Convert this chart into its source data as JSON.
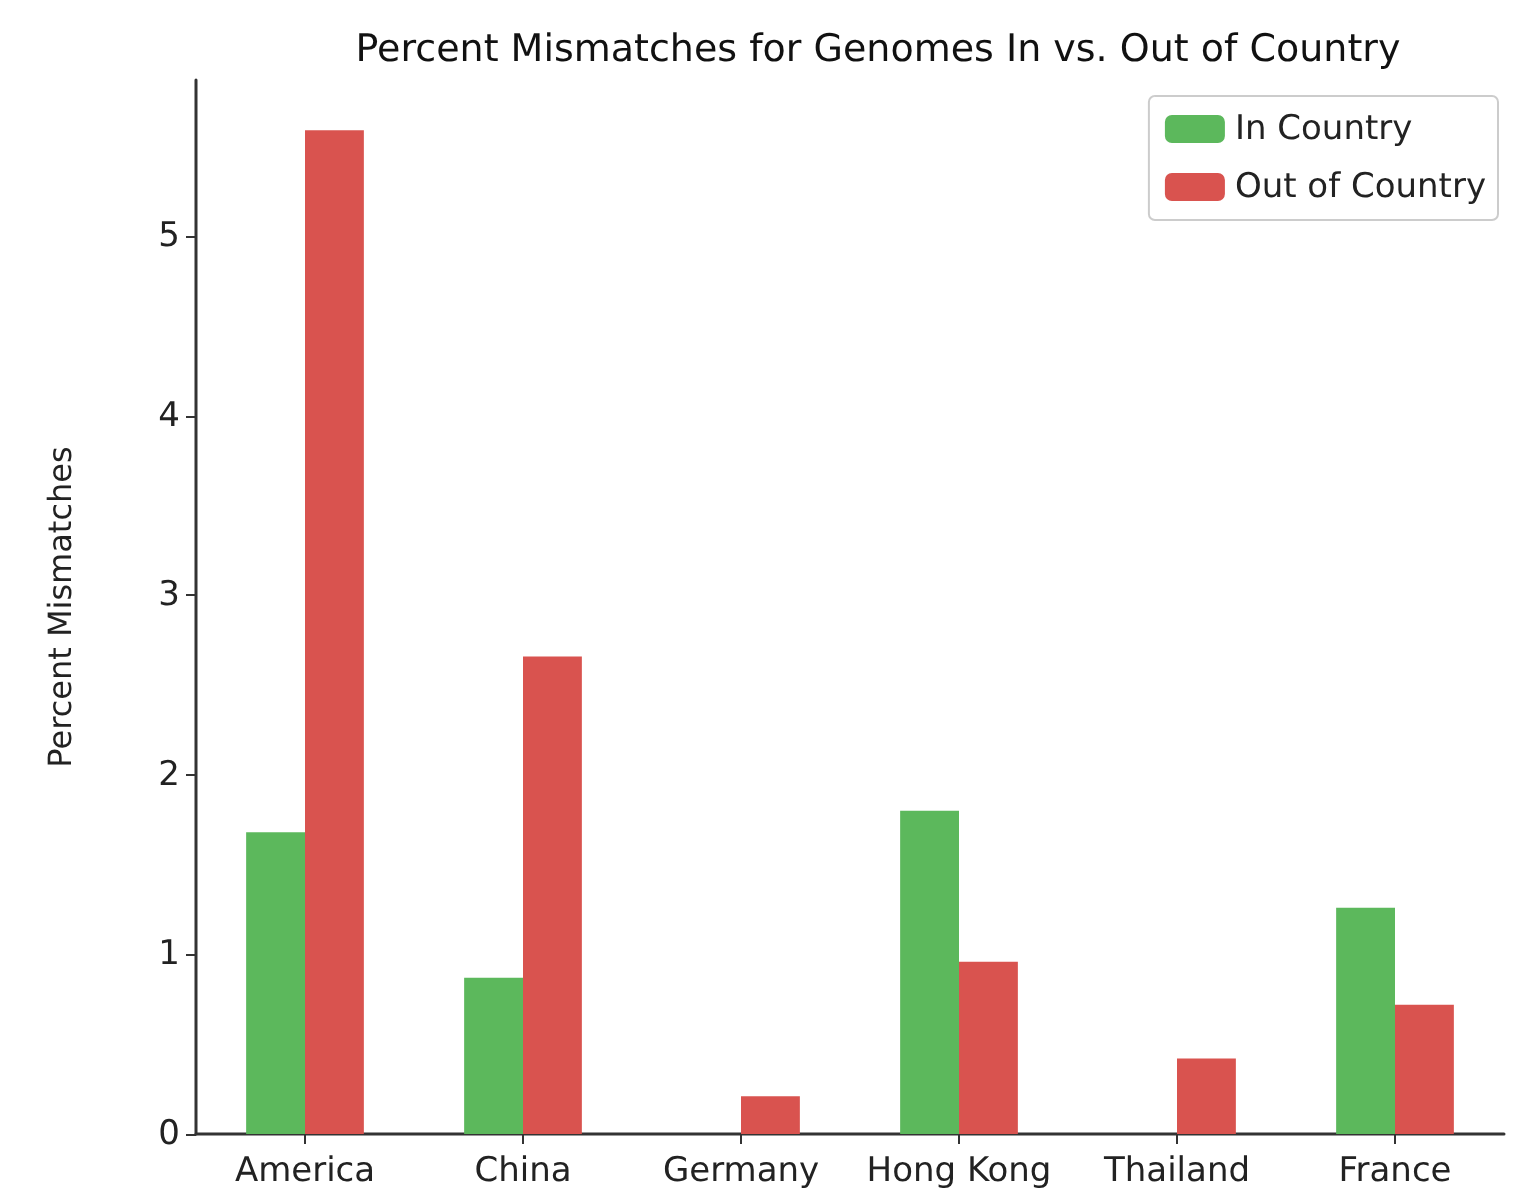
{
  "chart_data": {
    "type": "bar",
    "title": "Percent Mismatches for Genomes In vs. Out of Country",
    "ylabel": "Percent Mismatches",
    "categories": [
      "America",
      "China",
      "Germany",
      "Hong Kong",
      "Thailand",
      "France"
    ],
    "series": [
      {
        "name": "In Country",
        "color": "#5cb85c",
        "values": [
          1.68,
          0.87,
          0,
          1.8,
          0,
          1.26
        ]
      },
      {
        "name": "Out of Country",
        "color": "#d9534f",
        "values": [
          5.59,
          2.66,
          0.21,
          0.96,
          0.42,
          0.72
        ]
      }
    ],
    "ylim": [
      0,
      5.87
    ],
    "yticks": [
      0,
      1,
      2,
      3,
      4,
      5
    ],
    "grid": false,
    "legend": "top right"
  }
}
